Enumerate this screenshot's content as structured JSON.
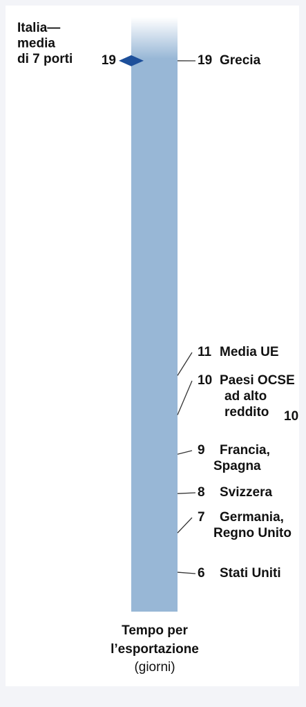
{
  "chart_data": {
    "type": "scale",
    "annotation": {
      "title_lines": [
        "Italia—",
        "media",
        "di 7 porti"
      ],
      "value": 19
    },
    "items": [
      {
        "value": 19,
        "name_lines": [
          "Grecia"
        ]
      },
      {
        "value": 11,
        "name_lines": [
          "Media UE"
        ]
      },
      {
        "value": 10,
        "name_lines": [
          "Paesi OCSE",
          "ad alto",
          "reddito"
        ]
      },
      {
        "value": 9,
        "name_lines": [
          "Francia,",
          "Spagna"
        ]
      },
      {
        "value": 8,
        "name_lines": [
          "Svizzera"
        ]
      },
      {
        "value": 7,
        "name_lines": [
          "Germania,",
          "Regno Unito"
        ]
      },
      {
        "value": 6,
        "name_lines": [
          "Stati Uniti"
        ]
      }
    ],
    "axis_label_lines": [
      "Tempo per",
      "l’esportazione"
    ],
    "axis_unit": "(giorni)",
    "edge_value": 10,
    "ylim": [
      5,
      20
    ],
    "bar_color": "#98b7d6",
    "marker_color": "#1d4f9a"
  }
}
